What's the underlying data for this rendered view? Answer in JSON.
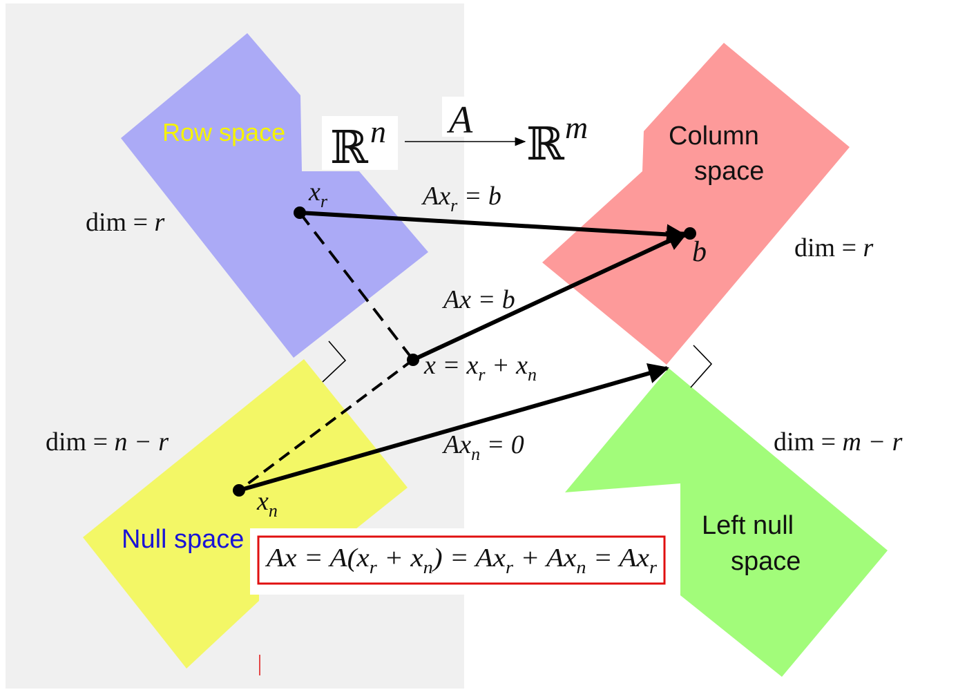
{
  "colors": {
    "left_panel_bg": "#f0f0f0",
    "row_space": "#abaaf6",
    "column_space": "#fd9a9a",
    "null_space": "#f3f766",
    "left_null_space": "#a2fc7a",
    "row_space_label": "#f6f400",
    "null_space_label": "#1a14d6",
    "equation_box_border": "#e01010"
  },
  "mapping": {
    "domain_symbol": "ℝ",
    "domain_exponent": "n",
    "matrix": "A",
    "codomain_symbol": "ℝ",
    "codomain_exponent": "m"
  },
  "subspaces": {
    "row_space": {
      "label": "Row space",
      "dim_prefix": "dim = ",
      "dim_value": "r"
    },
    "column_space": {
      "label_line1": "Column",
      "label_line2": "space",
      "dim_prefix": "dim = ",
      "dim_value": "r"
    },
    "null_space": {
      "label": "Null space",
      "dim_prefix": "dim = ",
      "dim_value": "n − r"
    },
    "left_null_space": {
      "label_line1": "Left null",
      "label_line2": "space",
      "dim_prefix": "dim = ",
      "dim_value": "m − r"
    }
  },
  "points": {
    "xr": {
      "base": "x",
      "sub": "r"
    },
    "b": {
      "label": "b"
    },
    "x": {
      "lhs": "x = x",
      "sub1": "r",
      "plus": " + x",
      "sub2": "n"
    },
    "xn": {
      "base": "x",
      "sub": "n"
    }
  },
  "arrow_labels": {
    "axr": {
      "pre": "Ax",
      "sub": "r",
      "post": " = b"
    },
    "ax": {
      "text": "Ax = b"
    },
    "axn": {
      "pre": "Ax",
      "sub": "n",
      "post": " = 0"
    }
  },
  "equation": {
    "p1": "Ax = A(x",
    "s1": "r",
    "p2": " + x",
    "s2": "n",
    "p3": ") = Ax",
    "s3": "r",
    "p4": " + Ax",
    "s4": "n",
    "p5": " = Ax",
    "s5": "r"
  }
}
